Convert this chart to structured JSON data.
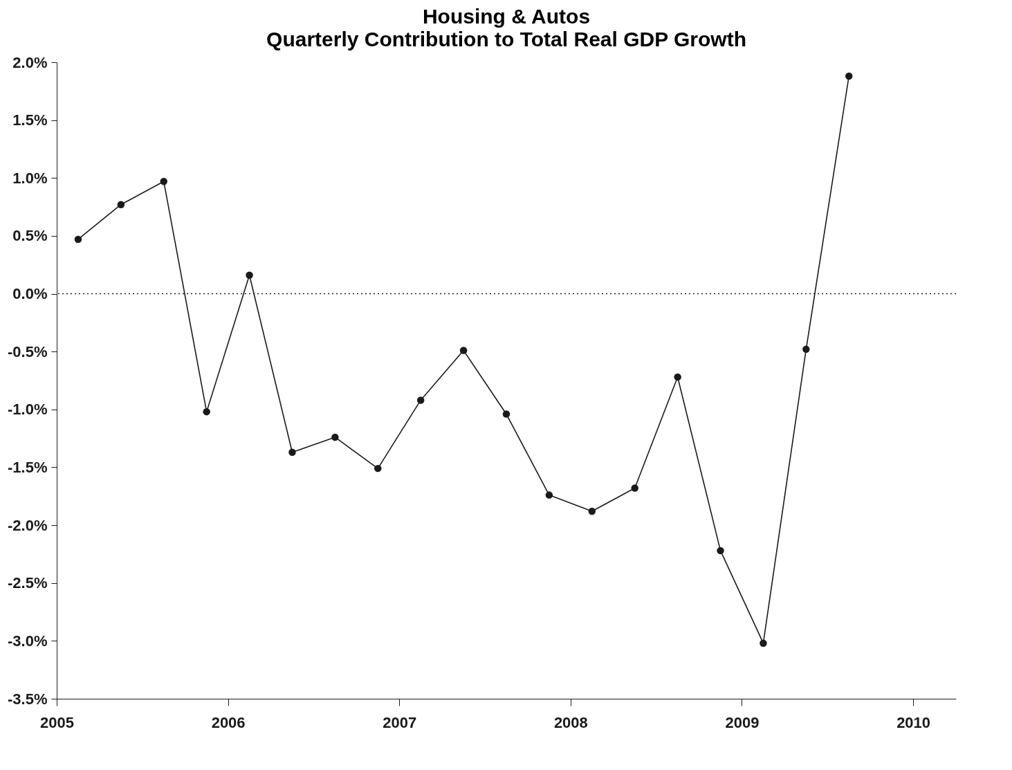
{
  "chart_data": {
    "type": "line",
    "title": "Housing & Autos",
    "subtitle": "Quarterly Contribution to Total Real GDP Growth",
    "x": [
      2005.125,
      2005.375,
      2005.625,
      2005.875,
      2006.125,
      2006.375,
      2006.625,
      2006.875,
      2007.125,
      2007.375,
      2007.625,
      2007.875,
      2008.125,
      2008.375,
      2008.625,
      2008.875,
      2009.125,
      2009.375,
      2009.625
    ],
    "series": [
      {
        "color": "#1a1a1a",
        "values": [
          0.47,
          0.77,
          0.97,
          -1.02,
          0.16,
          -1.37,
          -1.24,
          -1.51,
          -0.92,
          -0.49,
          -1.04,
          -1.74,
          -1.88,
          -1.68,
          -0.72,
          -2.22,
          -3.02,
          -0.48,
          1.88
        ]
      }
    ],
    "xlim": [
      2005,
      2010.25
    ],
    "xticks": [
      2005,
      2006,
      2007,
      2008,
      2009,
      2010
    ],
    "ylim": [
      -3.5,
      2.0
    ],
    "yticks": [
      {
        "value": -3.5,
        "label": "-3.5%"
      },
      {
        "value": -3.0,
        "label": "-3.0%"
      },
      {
        "value": -2.5,
        "label": "-2.5%"
      },
      {
        "value": -2.0,
        "label": "-2.0%"
      },
      {
        "value": -1.5,
        "label": "-1.5%"
      },
      {
        "value": -1.0,
        "label": "-1.0%"
      },
      {
        "value": -0.5,
        "label": "-0.5%"
      },
      {
        "value": 0.0,
        "label": "0.0%"
      },
      {
        "value": 0.5,
        "label": "0.5%"
      },
      {
        "value": 1.0,
        "label": "1.0%"
      },
      {
        "value": 1.5,
        "label": "1.5%"
      },
      {
        "value": 2.0,
        "label": "2.0%"
      }
    ],
    "ref_lines": [
      {
        "axis": "y",
        "value": 0,
        "line_style": "dotted",
        "color": "#1a1a1a"
      }
    ],
    "grid": false,
    "marker": "circle",
    "line_style": "solid"
  }
}
